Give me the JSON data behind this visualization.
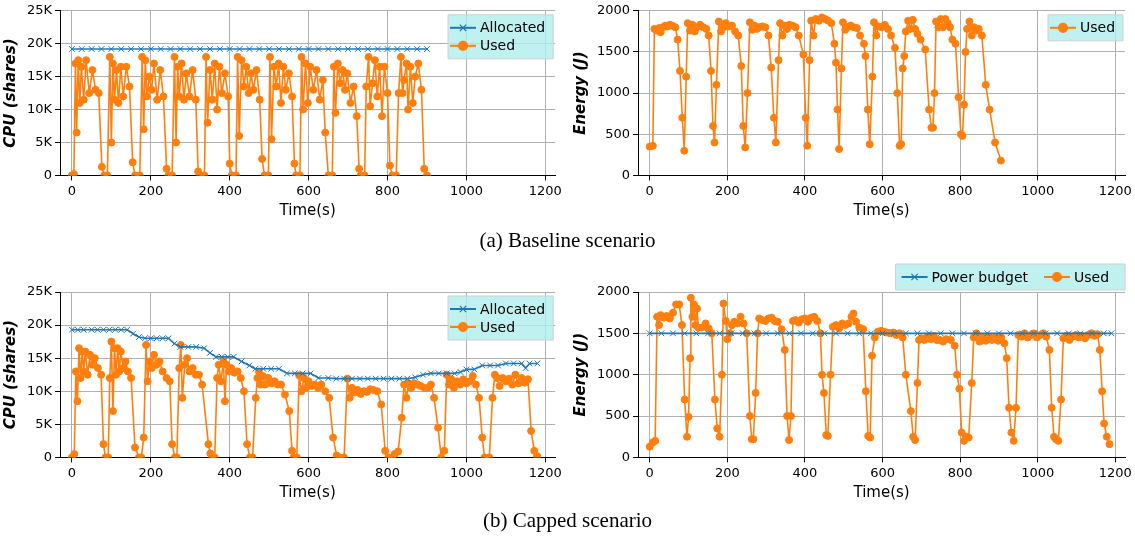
{
  "chart_data": [
    {
      "type": "line",
      "ylabel": "CPU (shares)",
      "xlabel": "Time(s)",
      "annotations": [
        "(a) Baseline scenario"
      ],
      "xlim": [
        -30,
        1225
      ],
      "xticks": [
        0,
        200,
        400,
        600,
        800,
        1000,
        1200
      ],
      "ylim": [
        0,
        25000
      ],
      "yticks": [
        0,
        {
          "value": 5000,
          "label": "5K"
        },
        {
          "value": 10000,
          "label": "10K"
        },
        {
          "value": 15000,
          "label": "15K"
        },
        {
          "value": 20000,
          "label": "20K"
        },
        {
          "value": 25000,
          "label": "25K"
        }
      ],
      "grid": true,
      "legend": "top right",
      "series": [
        {
          "name": "Allocated",
          "color": "#1f77b4",
          "marker": "cross",
          "x": [
            0,
            25,
            50,
            75,
            100,
            125,
            150,
            175,
            200,
            225,
            250,
            275,
            300,
            325,
            350,
            375,
            400,
            425,
            450,
            475,
            500,
            525,
            550,
            575,
            600,
            625,
            650,
            675,
            700,
            725,
            750,
            775,
            800,
            825,
            850,
            875,
            900
          ],
          "values": [
            19200,
            19200,
            19200,
            19200,
            19200,
            19200,
            19200,
            19200,
            19200,
            19200,
            19200,
            19200,
            19200,
            19200,
            19200,
            19200,
            19200,
            19200,
            19200,
            19200,
            19200,
            19200,
            19200,
            19200,
            19200,
            19200,
            19200,
            19200,
            19200,
            19200,
            19200,
            19200,
            19200,
            19200,
            19200,
            19200,
            19200
          ]
        },
        {
          "name": "Used",
          "color": "#ff7f0e",
          "marker": "circle",
          "x": [
            0,
            5,
            9,
            12,
            16,
            20,
            24,
            30,
            36,
            44,
            52,
            60,
            68,
            76,
            82,
            90,
            96,
            100,
            104,
            108,
            113,
            118,
            124,
            130,
            138,
            146,
            154,
            160,
            172,
            178,
            182,
            186,
            190,
            196,
            202,
            208,
            216,
            224,
            232,
            240,
            245,
            254,
            260,
            264,
            268,
            272,
            278,
            284,
            290,
            298,
            306,
            314,
            320,
            325,
            336,
            340,
            344,
            350,
            356,
            362,
            368,
            374,
            380,
            388,
            396,
            400,
            405,
            416,
            420,
            424,
            430,
            436,
            442,
            448,
            454,
            460,
            468,
            476,
            482,
            488,
            498,
            502,
            506,
            512,
            518,
            524,
            530,
            536,
            542,
            550,
            558,
            564,
            568,
            578,
            582,
            586,
            592,
            598,
            604,
            612,
            620,
            628,
            636,
            642,
            650,
            660,
            664,
            668,
            674,
            680,
            686,
            692,
            698,
            706,
            714,
            722,
            728,
            732,
            742,
            746,
            752,
            756,
            762,
            768,
            774,
            780,
            786,
            792,
            800,
            806,
            812,
            822,
            828,
            834,
            838,
            842,
            848,
            852,
            858,
            864,
            870,
            878,
            886,
            893,
            900
          ],
          "values": [
            0,
            200,
            17000,
            6500,
            17500,
            11000,
            16500,
            11500,
            17500,
            12500,
            16000,
            13000,
            12500,
            1300,
            0,
            0,
            18000,
            5000,
            17000,
            11500,
            16000,
            11000,
            16500,
            12000,
            16500,
            13500,
            2000,
            0,
            0,
            18000,
            7000,
            17500,
            12000,
            15000,
            13000,
            17000,
            11500,
            16000,
            12000,
            1000,
            0,
            0,
            18000,
            5000,
            16500,
            12000,
            17000,
            11500,
            15500,
            12000,
            16000,
            11500,
            600,
            0,
            0,
            18000,
            8000,
            16000,
            11500,
            17000,
            10000,
            16500,
            12500,
            15500,
            12000,
            1800,
            0,
            0,
            18000,
            6000,
            17500,
            13500,
            16500,
            12500,
            15500,
            13000,
            16000,
            11500,
            2500,
            0,
            0,
            18000,
            5500,
            16500,
            13500,
            17000,
            11000,
            16500,
            13000,
            15500,
            12000,
            1800,
            0,
            0,
            18000,
            10000,
            17000,
            11000,
            16500,
            13000,
            16000,
            11500,
            14500,
            6500,
            0,
            0,
            16500,
            9500,
            17000,
            14000,
            16000,
            13000,
            15500,
            11000,
            13500,
            9000,
            1000,
            0,
            0,
            13500,
            18000,
            10500,
            14000,
            17500,
            12000,
            16500,
            9000,
            16500,
            12500,
            1500,
            0,
            0,
            12500,
            18000,
            12500,
            14500,
            17000,
            10000,
            16500,
            11000,
            15000,
            17000,
            13000,
            1000,
            0
          ]
        }
      ]
    },
    {
      "type": "line",
      "ylabel": "Energy (J)",
      "xlabel": "Time(s)",
      "xlim": [
        -30,
        1225
      ],
      "xticks": [
        0,
        200,
        400,
        600,
        800,
        1000,
        1200
      ],
      "ylim": [
        0,
        2000
      ],
      "yticks": [
        0,
        500,
        1000,
        1500,
        2000
      ],
      "grid": true,
      "legend": "top right",
      "series": [
        {
          "name": "Used",
          "color": "#ff7f0e",
          "marker": "circle",
          "x": [
            0,
            8,
            12,
            18,
            24,
            28,
            34,
            40,
            46,
            52,
            58,
            66,
            72,
            78,
            84,
            89,
            94,
            98,
            104,
            110,
            116,
            122,
            130,
            138,
            146,
            152,
            158,
            163,
            167,
            172,
            178,
            184,
            190,
            196,
            204,
            212,
            220,
            228,
            236,
            241,
            246,
            252,
            258,
            264,
            270,
            276,
            282,
            290,
            298,
            306,
            313,
            320,
            325,
            332,
            336,
            342,
            348,
            354,
            360,
            368,
            376,
            384,
            396,
            402,
            406,
            412,
            416,
            422,
            428,
            436,
            444,
            452,
            460,
            468,
            476,
            480,
            484,
            488,
            494,
            498,
            504,
            510,
            518,
            526,
            534,
            542,
            552,
            556,
            562,
            567,
            574,
            578,
            584,
            590,
            598,
            606,
            614,
            622,
            632,
            638,
            644,
            648,
            652,
            656,
            660,
            666,
            672,
            678,
            684,
            690,
            698,
            710,
            720,
            726,
            730,
            734,
            738,
            744,
            750,
            756,
            762,
            768,
            774,
            780,
            788,
            796,
            802,
            806,
            810,
            814,
            818,
            824,
            830,
            836,
            842,
            848,
            856,
            866,
            876,
            890,
            905
          ],
          "values": [
            350,
            360,
            1780,
            1760,
            1790,
            1740,
            1800,
            1820,
            1810,
            1830,
            1820,
            1800,
            1650,
            1270,
            700,
            300,
            1200,
            1850,
            1760,
            1830,
            1750,
            1800,
            1830,
            1800,
            1780,
            1700,
            1270,
            600,
            400,
            1100,
            1870,
            1750,
            1800,
            1850,
            1810,
            1820,
            1750,
            1700,
            1330,
            600,
            340,
            1000,
            1860,
            1770,
            1820,
            1780,
            1800,
            1810,
            1800,
            1700,
            1310,
            700,
            400,
            1400,
            1850,
            1700,
            1820,
            1780,
            1830,
            1820,
            1800,
            1700,
            1470,
            700,
            360,
            1400,
            1880,
            1700,
            1900,
            1880,
            1920,
            1900,
            1880,
            1850,
            1600,
            1370,
            800,
            320,
            1300,
            1860,
            1770,
            1800,
            1820,
            1800,
            1790,
            1700,
            1600,
            1450,
            800,
            380,
            1200,
            1860,
            1700,
            1810,
            1800,
            1830,
            1780,
            1700,
            1550,
            1000,
            360,
            380,
            1300,
            1450,
            1750,
            1880,
            1780,
            1890,
            1780,
            1720,
            1650,
            1530,
            800,
            580,
            580,
            1000,
            1870,
            1800,
            1900,
            1800,
            1900,
            1850,
            1800,
            1650,
            1600,
            950,
            500,
            480,
            860,
            1500,
            1780,
            1870,
            1700,
            1800,
            1760,
            1780,
            1700,
            1100,
            800,
            400,
            180
          ]
        }
      ]
    },
    {
      "type": "line",
      "ylabel": "CPU (shares)",
      "xlabel": "Time(s)",
      "annotations": [
        "(b) Capped scenario"
      ],
      "xlim": [
        -30,
        1225
      ],
      "xticks": [
        0,
        200,
        400,
        600,
        800,
        1000,
        1200
      ],
      "ylim": [
        0,
        25000
      ],
      "yticks": [
        0,
        {
          "value": 5000,
          "label": "5K"
        },
        {
          "value": 10000,
          "label": "10K"
        },
        {
          "value": 15000,
          "label": "15K"
        },
        {
          "value": 20000,
          "label": "20K"
        },
        {
          "value": 25000,
          "label": "25K"
        }
      ],
      "grid": true,
      "legend": "top right",
      "series": [
        {
          "name": "Allocated",
          "color": "#1f77b4",
          "marker": "cross",
          "x": [
            0,
            15,
            30,
            50,
            65,
            80,
            95,
            110,
            125,
            140,
            155,
            170,
            185,
            200,
            215,
            230,
            245,
            260,
            275,
            295,
            315,
            335,
            350,
            365,
            380,
            395,
            410,
            430,
            450,
            465,
            485,
            505,
            525,
            545,
            565,
            585,
            605,
            625,
            650,
            670,
            690,
            710,
            730,
            750,
            770,
            790,
            810,
            830,
            850,
            870,
            890,
            910,
            930,
            950,
            970,
            985,
            1000,
            1020,
            1040,
            1060,
            1080,
            1100,
            1120,
            1140,
            1150,
            1160,
            1180
          ],
          "values": [
            19300,
            19300,
            19300,
            19300,
            19300,
            19300,
            19300,
            19300,
            19300,
            19300,
            18700,
            18200,
            18000,
            18000,
            18000,
            18000,
            18000,
            17200,
            16700,
            16700,
            16700,
            16500,
            15800,
            15200,
            15200,
            15200,
            15200,
            14500,
            13900,
            13400,
            13400,
            13400,
            13400,
            12700,
            12700,
            12700,
            12700,
            12000,
            12000,
            11900,
            11900,
            11900,
            11900,
            11900,
            11900,
            11900,
            11900,
            11900,
            11900,
            12100,
            12500,
            12700,
            12700,
            12700,
            12700,
            12900,
            13300,
            13300,
            13900,
            13900,
            13900,
            14200,
            14200,
            14200,
            13500,
            14200,
            14200
          ]
        },
        {
          "name": "Used",
          "color": "#ff7f0e",
          "marker": "circle",
          "x": [
            0,
            6,
            10,
            14,
            18,
            22,
            26,
            30,
            34,
            40,
            46,
            52,
            58,
            66,
            74,
            80,
            85,
            92,
            96,
            100,
            104,
            108,
            112,
            116,
            120,
            124,
            130,
            136,
            142,
            150,
            160,
            170,
            176,
            182,
            188,
            192,
            196,
            202,
            208,
            214,
            222,
            230,
            240,
            248,
            254,
            261,
            266,
            272,
            276,
            280,
            286,
            292,
            298,
            306,
            314,
            322,
            330,
            346,
            351,
            356,
            362,
            368,
            372,
            378,
            384,
            388,
            392,
            398,
            404,
            412,
            420,
            428,
            436,
            444,
            451,
            458,
            466,
            470,
            474,
            478,
            484,
            490,
            498,
            506,
            514,
            522,
            530,
            540,
            551,
            558,
            562,
            570,
            576,
            582,
            588,
            594,
            600,
            608,
            616,
            624,
            632,
            642,
            652,
            662,
            671,
            679,
            690,
            698,
            704,
            710,
            716,
            724,
            732,
            740,
            748,
            756,
            764,
            774,
            784,
            794,
            802,
            812,
            818,
            827,
            836,
            842,
            848,
            853,
            860,
            868,
            876,
            884,
            894,
            902,
            910,
            918,
            928,
            936,
            944,
            950,
            956,
            962,
            968,
            976,
            984,
            992,
            1000,
            1008,
            1016,
            1024,
            1032,
            1040,
            1046,
            1058,
            1066,
            1072,
            1078,
            1084,
            1092,
            1100,
            1108,
            1116,
            1124,
            1132,
            1140,
            1148,
            1156,
            1164,
            1172,
            1179
          ],
          "values": [
            0,
            500,
            13000,
            8500,
            16500,
            12000,
            16000,
            13000,
            16000,
            12500,
            15500,
            14000,
            15000,
            13500,
            12500,
            2000,
            0,
            0,
            12000,
            17500,
            7000,
            16500,
            12500,
            16500,
            13000,
            16000,
            13500,
            14500,
            13000,
            12000,
            1500,
            0,
            0,
            3000,
            17000,
            11500,
            14500,
            13500,
            15500,
            14000,
            14500,
            13000,
            12000,
            11500,
            2000,
            0,
            0,
            13500,
            17000,
            9000,
            14000,
            15000,
            13000,
            13500,
            12500,
            12500,
            11000,
            2000,
            600,
            0,
            0,
            12000,
            14000,
            11500,
            14500,
            8500,
            14000,
            13000,
            13500,
            12800,
            13000,
            12000,
            10000,
            2000,
            0,
            0,
            9000,
            12000,
            13000,
            11000,
            12300,
            11000,
            12000,
            11200,
            11500,
            11000,
            11000,
            9500,
            7000,
            1000,
            0,
            0,
            12400,
            10000,
            12000,
            10500,
            11500,
            10800,
            11000,
            10500,
            11000,
            10000,
            9000,
            3000,
            300,
            0,
            0,
            11900,
            9000,
            10500,
            9800,
            10200,
            9600,
            10000,
            9900,
            10300,
            10200,
            10000,
            8000,
            1000,
            0,
            0,
            500,
            900,
            6000,
            11000,
            9000,
            11200,
            10500,
            11200,
            11000,
            10800,
            10500,
            10500,
            11000,
            9000,
            4500,
            0,
            1000,
            12500,
            11000,
            11800,
            10500,
            11500,
            11000,
            11800,
            11200,
            11500,
            12300,
            11000,
            9000,
            3000,
            0,
            0,
            9000,
            12500,
            12000,
            10800,
            12000,
            11500,
            11900,
            11000,
            12500,
            11200,
            12000,
            11300,
            11800,
            4000,
            1000,
            200
          ]
        }
      ]
    },
    {
      "type": "line",
      "ylabel": "Energy (J)",
      "xlabel": "Time(s)",
      "xlim": [
        -30,
        1225
      ],
      "xticks": [
        0,
        200,
        400,
        600,
        800,
        1000,
        1200
      ],
      "ylim": [
        0,
        2000
      ],
      "yticks": [
        0,
        500,
        1000,
        1500,
        2000
      ],
      "grid": true,
      "legend": "top",
      "series": [
        {
          "name": "Power budget",
          "color": "#1f77b4",
          "marker": "cross",
          "x": [
            0,
            30,
            60,
            90,
            120,
            150,
            180,
            210,
            240,
            270,
            300,
            330,
            360,
            390,
            420,
            450,
            480,
            510,
            540,
            570,
            600,
            630,
            660,
            690,
            720,
            750,
            780,
            810,
            840,
            870,
            900,
            930,
            960,
            990,
            1020,
            1050,
            1080,
            1110,
            1140,
            1170,
            1190
          ],
          "values": [
            1500,
            1500,
            1500,
            1500,
            1500,
            1500,
            1500,
            1500,
            1500,
            1500,
            1500,
            1500,
            1500,
            1500,
            1500,
            1500,
            1500,
            1500,
            1500,
            1500,
            1500,
            1500,
            1500,
            1500,
            1500,
            1500,
            1500,
            1500,
            1500,
            1500,
            1500,
            1500,
            1500,
            1500,
            1500,
            1500,
            1500,
            1500,
            1500,
            1500,
            1500
          ]
        },
        {
          "name": "Used",
          "color": "#ff7f0e",
          "marker": "circle",
          "x": [
            0,
            8,
            14,
            19,
            24,
            28,
            36,
            44,
            52,
            60,
            68,
            76,
            83,
            90,
            96,
            100,
            104,
            106,
            110,
            114,
            118,
            122,
            125,
            134,
            144,
            152,
            160,
            168,
            174,
            180,
            186,
            190,
            196,
            200,
            206,
            212,
            218,
            226,
            234,
            242,
            250,
            258,
            263,
            267,
            273,
            278,
            282,
            290,
            298,
            306,
            314,
            322,
            330,
            340,
            348,
            354,
            359,
            364,
            369,
            376,
            384,
            392,
            400,
            408,
            416,
            424,
            432,
            440,
            444,
            449,
            455,
            459,
            466,
            472,
            480,
            488,
            496,
            504,
            512,
            520,
            525,
            532,
            540,
            550,
            557,
            563,
            568,
            573,
            580,
            588,
            596,
            604,
            612,
            620,
            628,
            636,
            644,
            652,
            660,
            673,
            679,
            684,
            690,
            694,
            700,
            708,
            716,
            724,
            732,
            740,
            748,
            756,
            764,
            776,
            786,
            792,
            798,
            804,
            810,
            816,
            822,
            830,
            835,
            842,
            850,
            858,
            866,
            874,
            882,
            890,
            898,
            906,
            914,
            920,
            926,
            932,
            938,
            944,
            950,
            958,
            966,
            974,
            982,
            990,
            998,
            1006,
            1014,
            1022,
            1030,
            1036,
            1042,
            1047,
            1053,
            1060,
            1066,
            1074,
            1082,
            1090,
            1098,
            1106,
            1114,
            1122,
            1130,
            1138,
            1146,
            1154,
            1160,
            1166,
            1171,
            1178,
            1185
          ],
          "values": [
            130,
            180,
            200,
            1700,
            1600,
            1720,
            1690,
            1710,
            1680,
            1750,
            1850,
            1850,
            1600,
            700,
            250,
            490,
            1200,
            1930,
            1700,
            1850,
            1600,
            1800,
            1570,
            1570,
            1620,
            1560,
            1500,
            700,
            350,
            250,
            1000,
            1860,
            1650,
            1430,
            1500,
            1600,
            1640,
            1620,
            1700,
            1620,
            1500,
            500,
            220,
            220,
            780,
            1500,
            1680,
            1660,
            1650,
            1680,
            1690,
            1650,
            1640,
            1550,
            1300,
            500,
            210,
            500,
            1650,
            1660,
            1630,
            1670,
            1680,
            1640,
            1690,
            1700,
            1650,
            1500,
            1000,
            780,
            270,
            260,
            1000,
            1580,
            1600,
            1560,
            1620,
            1600,
            1620,
            1700,
            1740,
            1640,
            1570,
            1550,
            800,
            260,
            240,
            1230,
            1450,
            1520,
            1530,
            1520,
            1510,
            1500,
            1510,
            1480,
            1500,
            1450,
            1000,
            560,
            250,
            210,
            900,
            1420,
            1440,
            1420,
            1460,
            1430,
            1470,
            1420,
            1420,
            1400,
            1430,
            1420,
            1350,
            1000,
            830,
            300,
            200,
            250,
            240,
            900,
            1450,
            1500,
            1400,
            1450,
            1410,
            1460,
            1420,
            1450,
            1410,
            1450,
            1380,
            1200,
            600,
            300,
            200,
            600,
            1480,
            1460,
            1500,
            1450,
            1480,
            1500,
            1450,
            1480,
            1500,
            1460,
            1300,
            600,
            250,
            220,
            200,
            700,
            1440,
            1470,
            1420,
            1460,
            1480,
            1450,
            1470,
            1440,
            1480,
            1500,
            1470,
            1490,
            1300,
            800,
            410,
            250,
            160
          ]
        }
      ]
    }
  ]
}
